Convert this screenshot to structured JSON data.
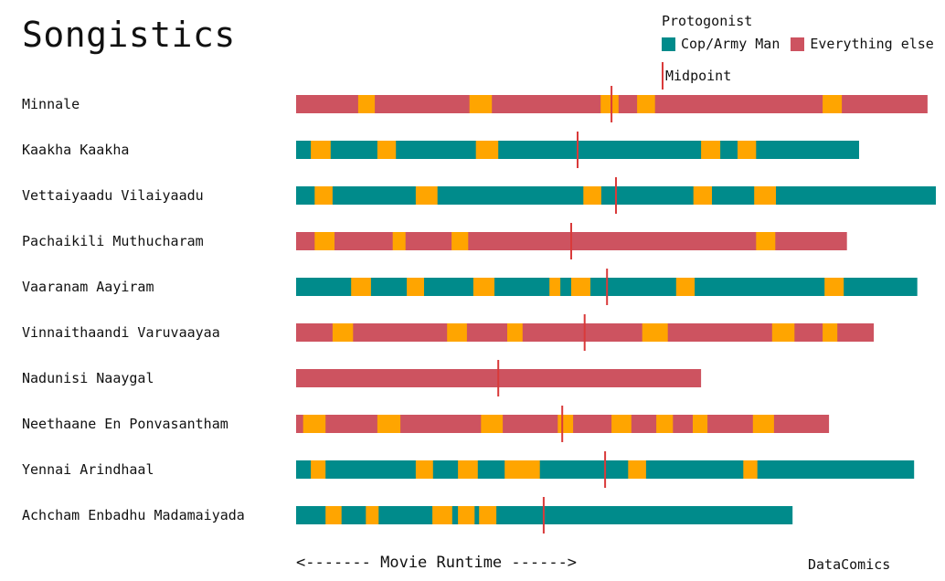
{
  "page": {
    "title": "Songistics",
    "footer_left": "<------- Movie Runtime ------>",
    "footer_right": "DataComics"
  },
  "legend": {
    "title": "Protogonist",
    "items": [
      {
        "label": "Cop/Army Man",
        "color": "#008B8B"
      },
      {
        "label": "Everything else",
        "color": "#CD5360"
      }
    ],
    "midpoint_label": "Midpoint",
    "midpoint_color": "#D93A3A"
  },
  "chart_data": {
    "type": "bar",
    "title": "Songistics",
    "xlabel": "<------- Movie Runtime ------>",
    "song_color": "#FFA500",
    "xlim": [
      0,
      100
    ],
    "movies": [
      {
        "name": "Minnale",
        "protagonist": "Everything else",
        "length": 98.7,
        "midpoint": 49.3,
        "songs": [
          [
            9.7,
            12.3
          ],
          [
            27.1,
            30.6
          ],
          [
            47.6,
            50.4
          ],
          [
            53.3,
            56.1
          ],
          [
            82.3,
            85.3
          ]
        ]
      },
      {
        "name": "Kaakha Kaakha",
        "protagonist": "Cop/Army Man",
        "length": 88.0,
        "midpoint": 44.0,
        "songs": [
          [
            2.3,
            5.4
          ],
          [
            12.7,
            15.6
          ],
          [
            28.1,
            31.6
          ],
          [
            63.3,
            66.3
          ],
          [
            69.0,
            71.9
          ]
        ]
      },
      {
        "name": "Vettaiyaadu Vilaiyaadu",
        "protagonist": "Cop/Army Man",
        "length": 100.0,
        "midpoint": 50.0,
        "songs": [
          [
            2.9,
            5.7
          ],
          [
            18.7,
            22.1
          ],
          [
            44.9,
            47.7
          ],
          [
            62.1,
            65.0
          ],
          [
            71.6,
            75.0
          ]
        ]
      },
      {
        "name": "Pachaikili Muthucharam",
        "protagonist": "Everything else",
        "length": 86.1,
        "midpoint": 43.0,
        "songs": [
          [
            2.9,
            6.0
          ],
          [
            15.1,
            17.1
          ],
          [
            24.3,
            26.9
          ],
          [
            71.9,
            74.9
          ]
        ]
      },
      {
        "name": "Vaaranam Aayiram",
        "protagonist": "Cop/Army Man",
        "length": 97.1,
        "midpoint": 48.6,
        "songs": [
          [
            8.6,
            11.7
          ],
          [
            17.3,
            20.0
          ],
          [
            27.7,
            31.0
          ],
          [
            39.6,
            41.3
          ],
          [
            43.0,
            46.0
          ],
          [
            59.4,
            62.3
          ],
          [
            82.6,
            85.6
          ]
        ]
      },
      {
        "name": "Vinnaithaandi Varuvaayaa",
        "protagonist": "Everything else",
        "length": 90.3,
        "midpoint": 45.1,
        "songs": [
          [
            5.7,
            8.9
          ],
          [
            23.6,
            26.7
          ],
          [
            33.0,
            35.4
          ],
          [
            54.1,
            58.1
          ],
          [
            74.4,
            77.9
          ],
          [
            82.3,
            84.6
          ]
        ]
      },
      {
        "name": "Nadunisi Naaygal",
        "protagonist": "Everything else",
        "length": 63.3,
        "midpoint": 31.6,
        "songs": []
      },
      {
        "name": "Neethaane En Ponvasantham",
        "protagonist": "Everything else",
        "length": 83.3,
        "midpoint": 41.6,
        "songs": [
          [
            1.1,
            4.6
          ],
          [
            12.7,
            16.3
          ],
          [
            28.9,
            32.3
          ],
          [
            40.9,
            43.3
          ],
          [
            49.3,
            52.4
          ],
          [
            56.3,
            58.9
          ],
          [
            62.0,
            64.3
          ],
          [
            71.4,
            74.7
          ]
        ]
      },
      {
        "name": "Yennai Arindhaal",
        "protagonist": "Cop/Army Man",
        "length": 96.6,
        "midpoint": 48.3,
        "songs": [
          [
            2.3,
            4.6
          ],
          [
            18.7,
            21.4
          ],
          [
            25.3,
            28.4
          ],
          [
            32.6,
            38.1
          ],
          [
            51.9,
            54.7
          ],
          [
            69.9,
            72.1
          ]
        ]
      },
      {
        "name": "Achcham Enbadhu Madamaiyada",
        "protagonist": "Cop/Army Man",
        "length": 77.6,
        "midpoint": 38.7,
        "songs": [
          [
            4.6,
            7.1
          ],
          [
            10.9,
            12.9
          ],
          [
            21.3,
            24.4
          ],
          [
            25.3,
            27.9
          ],
          [
            28.6,
            31.3
          ]
        ]
      }
    ]
  }
}
